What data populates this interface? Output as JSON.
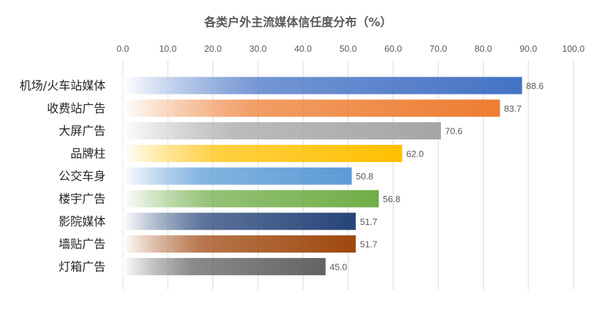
{
  "chart_data": {
    "type": "bar",
    "orientation": "horizontal",
    "title": "各类户外主流媒体信任度分布（%）",
    "categories": [
      "机场/火车站媒体",
      "收费站广告",
      "大屏广告",
      "品牌柱",
      "公交车身",
      "楼宇广告",
      "影院媒体",
      "墙贴广告",
      "灯箱广告"
    ],
    "values": [
      88.6,
      83.7,
      70.6,
      62.0,
      50.8,
      56.8,
      51.7,
      51.7,
      45.0
    ],
    "value_labels": [
      "88.6",
      "83.7",
      "70.6",
      "62.0",
      "50.8",
      "56.8",
      "51.7",
      "51.7",
      "45.0"
    ],
    "xlim": [
      0,
      100
    ],
    "x_ticks": [
      "0.0",
      "10.0",
      "20.0",
      "30.0",
      "40.0",
      "50.0",
      "60.0",
      "70.0",
      "80.0",
      "90.0",
      "100.0"
    ],
    "x_axis_position": "top",
    "grid": true,
    "legend": "none",
    "bar_style": "gradient from white (left) to solid color (right)",
    "colors": [
      "#4472c4",
      "#ed7d31",
      "#a5a5a5",
      "#ffc000",
      "#5b9bd5",
      "#70ad47",
      "#264478",
      "#9e480e",
      "#636363"
    ]
  }
}
